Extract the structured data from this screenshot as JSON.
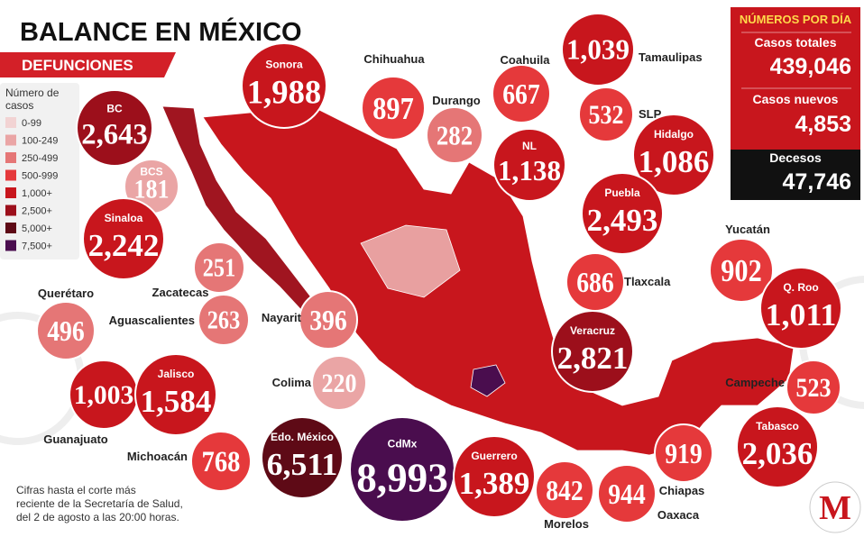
{
  "header": {
    "title_prefix": "BALANCE EN",
    "title_bold": "MÉXICO",
    "subtitle": "DEFUNCIONES"
  },
  "legend": {
    "title": "Número de casos",
    "items": [
      {
        "label": "0-99",
        "color": "#f2d3d3"
      },
      {
        "label": "100-249",
        "color": "#eaa5a5"
      },
      {
        "label": "250-499",
        "color": "#e57676"
      },
      {
        "label": "500-999",
        "color": "#e5393b"
      },
      {
        "label": "1,000+",
        "color": "#c8161d"
      },
      {
        "label": "2,500+",
        "color": "#9c0f1b"
      },
      {
        "label": "5,000+",
        "color": "#5e0a16"
      },
      {
        "label": "7,500+",
        "color": "#4a0d4e"
      }
    ]
  },
  "states": [
    {
      "name": "BC",
      "value": "2,643",
      "color": "#9c0f1b"
    },
    {
      "name": "Sonora",
      "value": "1,988",
      "color": "#c8161d"
    },
    {
      "name": "Chihuahua",
      "value": "897",
      "color": "#e5393b"
    },
    {
      "name": "Durango",
      "value": "282",
      "color": "#e57676"
    },
    {
      "name": "Coahuila",
      "value": "667",
      "color": "#e5393b"
    },
    {
      "name": "Tamaulipas",
      "value": "1,039",
      "color": "#c8161d"
    },
    {
      "name": "SLP",
      "value": "532",
      "color": "#e5393b"
    },
    {
      "name": "NL",
      "value": "1,138",
      "color": "#c8161d"
    },
    {
      "name": "Hidalgo",
      "value": "1,086",
      "color": "#c8161d"
    },
    {
      "name": "Puebla",
      "value": "2,493",
      "color": "#c8161d"
    },
    {
      "name": "Tlaxcala",
      "value": "686",
      "color": "#e5393b"
    },
    {
      "name": "Veracruz",
      "value": "2,821",
      "color": "#9c0f1b"
    },
    {
      "name": "BCS",
      "value": "181",
      "color": "#eaa5a5"
    },
    {
      "name": "Sinaloa",
      "value": "2,242",
      "color": "#c8161d"
    },
    {
      "name": "Zacatecas",
      "value": "251",
      "color": "#e57676"
    },
    {
      "name": "Aguascalientes",
      "value": "263",
      "color": "#e57676"
    },
    {
      "name": "Nayarit",
      "value": "396",
      "color": "#e57676"
    },
    {
      "name": "Querétaro",
      "value": "496",
      "color": "#e57676"
    },
    {
      "name": "Colima",
      "value": "220",
      "color": "#eaa5a5"
    },
    {
      "name": "Guanajuato",
      "value": "1,003",
      "color": "#c8161d"
    },
    {
      "name": "Jalisco",
      "value": "1,584",
      "color": "#c8161d"
    },
    {
      "name": "Michoacán",
      "value": "768",
      "color": "#e5393b"
    },
    {
      "name": "Edo. México",
      "value": "6,511",
      "color": "#5e0a16"
    },
    {
      "name": "CdMx",
      "value": "8,993",
      "color": "#4a0d4e"
    },
    {
      "name": "Guerrero",
      "value": "1,389",
      "color": "#c8161d"
    },
    {
      "name": "Morelos",
      "value": "842",
      "color": "#e5393b"
    },
    {
      "name": "Oaxaca",
      "value": "944",
      "color": "#e5393b"
    },
    {
      "name": "Chiapas",
      "value": "919",
      "color": "#e5393b"
    },
    {
      "name": "Yucatán",
      "value": "902",
      "color": "#e5393b"
    },
    {
      "name": "Q. Roo",
      "value": "1,011",
      "color": "#c8161d"
    },
    {
      "name": "Campeche",
      "value": "523",
      "color": "#e5393b"
    },
    {
      "name": "Tabasco",
      "value": "2,036",
      "color": "#c8161d"
    }
  ],
  "summary": {
    "title": "NÚMEROS POR DÍA",
    "rows": [
      {
        "label": "Casos totales",
        "value": "439,046"
      },
      {
        "label": "Casos nuevos",
        "value": "4,853"
      },
      {
        "label": "Decesos",
        "value": "47,746"
      }
    ]
  },
  "footnote": [
    "Cifras hasta el corte más",
    "reciente de la Secretaría de Salud,",
    "del 2 de agosto a las 20:00 horas."
  ],
  "logo": "M"
}
